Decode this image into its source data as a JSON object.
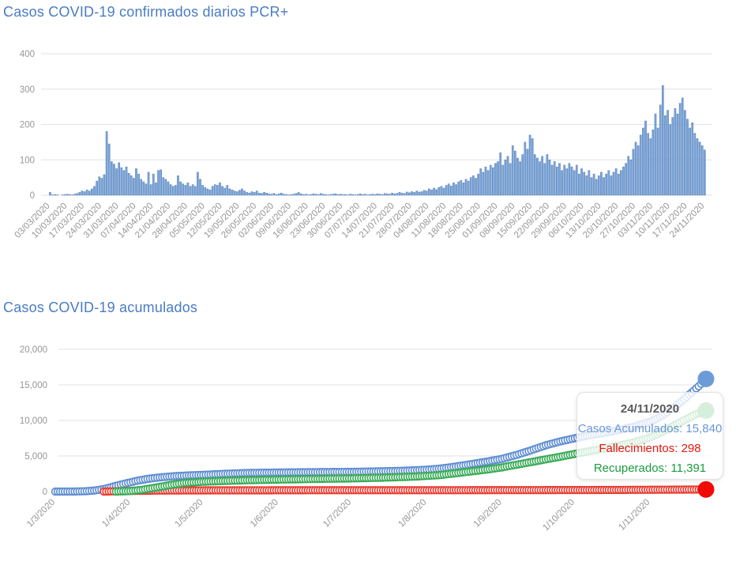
{
  "page": {
    "background": "#ffffff",
    "title_color": "#4A7CC4",
    "axis_label_color": "#969696",
    "grid_color": "#e2e2e2"
  },
  "chart_data": [
    {
      "type": "bar",
      "title": "Casos COVID-19 confirmados diarios PCR+",
      "xlabel": "",
      "ylabel": "",
      "ylim": [
        0,
        400
      ],
      "grid": true,
      "legend": "none",
      "bar_color": "#7CA5D9",
      "bar_border_color": "#5580B8",
      "y_ticks": [
        0,
        100,
        200,
        300,
        400
      ],
      "y_tick_labels": [
        "0",
        "100",
        "200",
        "300",
        "400"
      ],
      "x_start_date": "03/03/2020",
      "x_end_date": "24/11/2020",
      "x_tick_every_days": 7,
      "x_tick_labels": [
        "03/03/2020",
        "10/03/2020",
        "17/03/2020",
        "24/03/2020",
        "31/03/2020",
        "07/04/2020",
        "14/04/2020",
        "21/04/2020",
        "28/04/2020",
        "05/05/2020",
        "12/05/2020",
        "19/05/2020",
        "26/05/2020",
        "02/06/2020",
        "09/06/2020",
        "16/06/2020",
        "23/06/2020",
        "30/06/2020",
        "07/07/2020",
        "14/07/2020",
        "21/07/2020",
        "28/07/2020",
        "04/08/2020",
        "11/08/2020",
        "18/08/2020",
        "25/08/2020",
        "01/09/2020",
        "08/09/2020",
        "15/09/2020",
        "22/09/2020",
        "29/09/2020",
        "06/10/2020",
        "13/10/2020",
        "20/10/2020",
        "27/10/2020",
        "03/11/2020",
        "10/11/2020",
        "17/11/2020",
        "24/11/2020"
      ],
      "values": [
        8,
        1,
        2,
        1,
        0,
        1,
        2,
        3,
        2,
        1,
        3,
        5,
        8,
        12,
        10,
        15,
        12,
        18,
        25,
        40,
        52,
        48,
        58,
        180,
        145,
        95,
        88,
        75,
        92,
        78,
        70,
        80,
        62,
        55,
        48,
        75,
        60,
        45,
        38,
        32,
        65,
        30,
        60,
        35,
        70,
        72,
        50,
        45,
        38,
        30,
        25,
        28,
        55,
        38,
        32,
        28,
        35,
        25,
        30,
        25,
        65,
        45,
        28,
        22,
        18,
        15,
        25,
        30,
        28,
        35,
        25,
        20,
        28,
        18,
        15,
        12,
        10,
        14,
        18,
        12,
        8,
        6,
        10,
        8,
        12,
        6,
        5,
        8,
        6,
        4,
        3,
        5,
        2,
        4,
        6,
        3,
        2,
        1,
        2,
        3,
        5,
        8,
        4,
        2,
        3,
        1,
        2,
        4,
        3,
        2,
        5,
        3,
        2,
        1,
        2,
        3,
        4,
        2,
        3,
        2,
        2,
        1,
        3,
        2,
        1,
        2,
        4,
        2,
        3,
        1,
        2,
        3,
        2,
        4,
        3,
        2,
        5,
        4,
        3,
        6,
        4,
        5,
        8,
        6,
        5,
        9,
        7,
        10,
        8,
        12,
        9,
        10,
        14,
        12,
        18,
        15,
        20,
        16,
        22,
        25,
        20,
        28,
        32,
        26,
        35,
        30,
        38,
        42,
        35,
        45,
        40,
        50,
        55,
        48,
        60,
        75,
        65,
        80,
        70,
        85,
        78,
        90,
        95,
        120,
        85,
        100,
        110,
        90,
        140,
        125,
        105,
        95,
        115,
        150,
        130,
        170,
        160,
        115,
        105,
        95,
        110,
        90,
        115,
        100,
        85,
        95,
        80,
        90,
        70,
        85,
        75,
        90,
        80,
        70,
        85,
        60,
        75,
        65,
        55,
        70,
        50,
        60,
        45,
        55,
        65,
        50,
        60,
        70,
        55,
        65,
        75,
        60,
        70,
        80,
        90,
        110,
        100,
        130,
        150,
        140,
        170,
        190,
        210,
        175,
        160,
        185,
        230,
        190,
        255,
        310,
        225,
        240,
        200,
        220,
        245,
        230,
        260,
        275,
        240,
        215,
        190,
        205,
        175,
        160,
        150,
        140,
        128
      ]
    },
    {
      "type": "scatter",
      "title": "Casos COVID-19 acumulados",
      "xlabel": "",
      "ylabel": "",
      "ylim": [
        0,
        20000
      ],
      "grid": true,
      "legend": "none",
      "total_days": 269,
      "x_start_date": "1/3/2020",
      "x_end_date": "24/11/2020",
      "y_ticks": [
        0,
        5000,
        10000,
        15000,
        20000
      ],
      "y_tick_labels": [
        "0",
        "5,000",
        "10,000",
        "15,000",
        "20,000"
      ],
      "x_tick_days": [
        0,
        31,
        61,
        92,
        122,
        153,
        184,
        214,
        245
      ],
      "x_tick_labels": [
        "1/3/2020",
        "1/4/2020",
        "1/5/2020",
        "1/6/2020",
        "1/7/2020",
        "1/8/2020",
        "1/9/2020",
        "1/10/2020",
        "1/11/2020"
      ],
      "series": [
        {
          "name": "Casos Acumulados",
          "color": "#5B8BD0",
          "end_dot_color": "#6D9BD8",
          "start_day": 0,
          "end_value": 15840,
          "anchors": [
            [
              0,
              0
            ],
            [
              8,
              8
            ],
            [
              12,
              40
            ],
            [
              16,
              140
            ],
            [
              20,
              350
            ],
            [
              23,
              620
            ],
            [
              26,
              900
            ],
            [
              29,
              1150
            ],
            [
              31,
              1300
            ],
            [
              34,
              1550
            ],
            [
              38,
              1780
            ],
            [
              42,
              1950
            ],
            [
              46,
              2080
            ],
            [
              50,
              2180
            ],
            [
              55,
              2270
            ],
            [
              61,
              2350
            ],
            [
              70,
              2500
            ],
            [
              80,
              2620
            ],
            [
              92,
              2680
            ],
            [
              100,
              2710
            ],
            [
              110,
              2740
            ],
            [
              122,
              2770
            ],
            [
              130,
              2820
            ],
            [
              140,
              2890
            ],
            [
              148,
              2990
            ],
            [
              153,
              3080
            ],
            [
              158,
              3220
            ],
            [
              163,
              3420
            ],
            [
              168,
              3680
            ],
            [
              173,
              3950
            ],
            [
              178,
              4220
            ],
            [
              184,
              4600
            ],
            [
              190,
              5150
            ],
            [
              196,
              5800
            ],
            [
              202,
              6500
            ],
            [
              208,
              7050
            ],
            [
              214,
              7500
            ],
            [
              220,
              7900
            ],
            [
              226,
              8250
            ],
            [
              232,
              8650
            ],
            [
              238,
              9100
            ],
            [
              245,
              9800
            ],
            [
              250,
              10700
            ],
            [
              254,
              11600
            ],
            [
              258,
              12700
            ],
            [
              262,
              13900
            ],
            [
              265,
              14800
            ],
            [
              268,
              15840
            ]
          ]
        },
        {
          "name": "Fallecimientos",
          "color": "#E8362B",
          "end_dot_color": "#F10B05",
          "start_day": 20,
          "end_value": 298,
          "anchors": [
            [
              20,
              0
            ],
            [
              24,
              25
            ],
            [
              28,
              55
            ],
            [
              31,
              80
            ],
            [
              35,
              105
            ],
            [
              40,
              125
            ],
            [
              45,
              140
            ],
            [
              50,
              150
            ],
            [
              55,
              158
            ],
            [
              61,
              165
            ],
            [
              70,
              172
            ],
            [
              80,
              177
            ],
            [
              92,
              180
            ],
            [
              110,
              183
            ],
            [
              122,
              184
            ],
            [
              140,
              186
            ],
            [
              153,
              188
            ],
            [
              168,
              192
            ],
            [
              184,
              198
            ],
            [
              200,
              206
            ],
            [
              214,
              214
            ],
            [
              228,
              226
            ],
            [
              240,
              240
            ],
            [
              250,
              258
            ],
            [
              258,
              275
            ],
            [
              264,
              288
            ],
            [
              268,
              298
            ]
          ]
        },
        {
          "name": "Recuperados",
          "color": "#34A853",
          "end_dot_color": "#34A853",
          "start_day": 25,
          "end_value": 11391,
          "anchors": [
            [
              25,
              0
            ],
            [
              31,
              80
            ],
            [
              36,
              250
            ],
            [
              42,
              600
            ],
            [
              48,
              950
            ],
            [
              53,
              1200
            ],
            [
              61,
              1380
            ],
            [
              70,
              1500
            ],
            [
              80,
              1600
            ],
            [
              92,
              1680
            ],
            [
              105,
              1760
            ],
            [
              122,
              1850
            ],
            [
              135,
              1950
            ],
            [
              148,
              2100
            ],
            [
              158,
              2300
            ],
            [
              168,
              2700
            ],
            [
              178,
              3100
            ],
            [
              184,
              3400
            ],
            [
              192,
              3900
            ],
            [
              200,
              4400
            ],
            [
              208,
              4900
            ],
            [
              214,
              5300
            ],
            [
              222,
              5800
            ],
            [
              230,
              6300
            ],
            [
              238,
              6900
            ],
            [
              245,
              7600
            ],
            [
              250,
              8400
            ],
            [
              255,
              9300
            ],
            [
              260,
              10200
            ],
            [
              264,
              10900
            ],
            [
              268,
              11391
            ]
          ]
        }
      ],
      "tooltip": {
        "date": "24/11/2020",
        "lines": [
          {
            "text": "Casos Acumulados: 15,840",
            "color": "#6A96D8"
          },
          {
            "text": "Fallecimientos: 298",
            "color": "#E8160C"
          },
          {
            "text": "Recuperados: 11,391",
            "color": "#1A9C3E"
          }
        ]
      }
    }
  ]
}
